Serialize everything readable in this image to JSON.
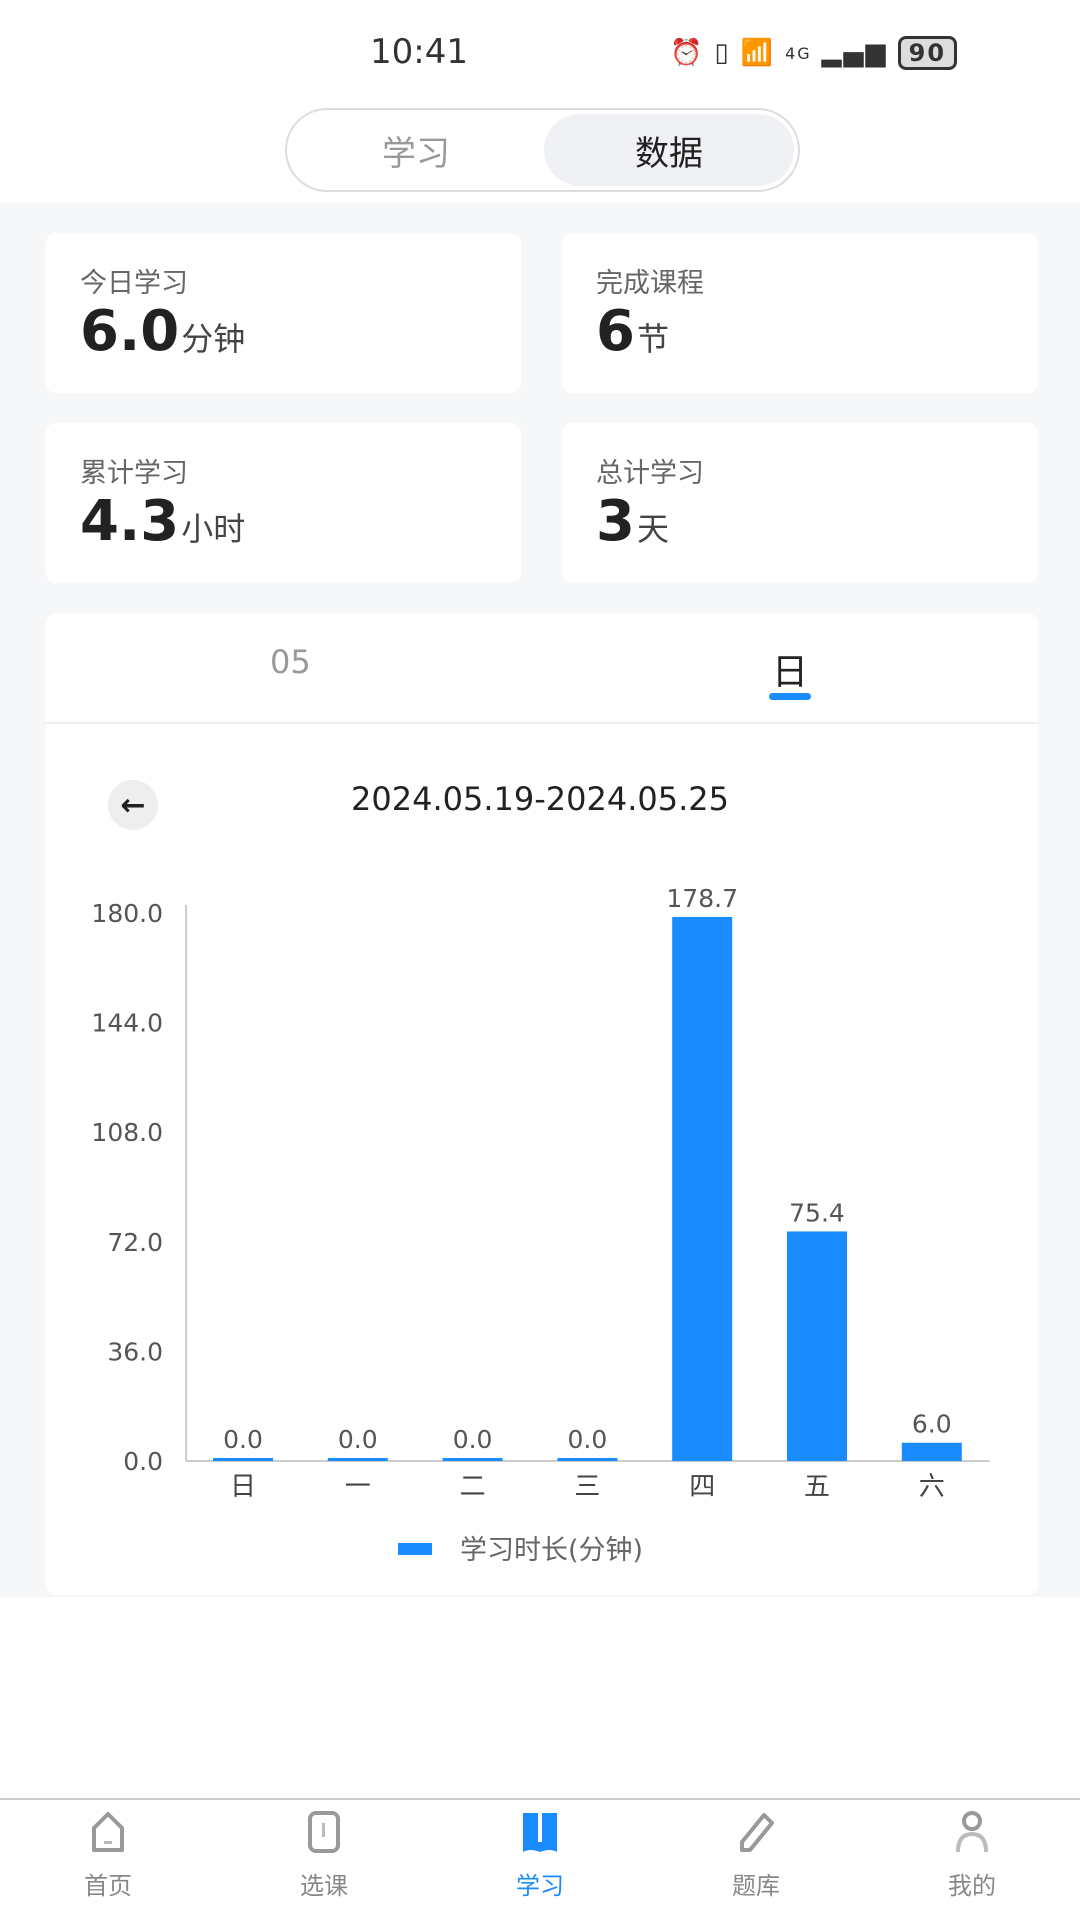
{
  "status": {
    "time": "10:41",
    "battery": "90",
    "network": "4G"
  },
  "segment": {
    "items": [
      "学习",
      "数据"
    ],
    "active": 1
  },
  "stats": [
    {
      "label": "今日学习",
      "value": "6.0",
      "unit": "分钟"
    },
    {
      "label": "完成课程",
      "value": "6",
      "unit": "节"
    },
    {
      "label": "累计学习",
      "value": "4.3",
      "unit": "小时"
    },
    {
      "label": "总计学习",
      "value": "3",
      "unit": "天"
    }
  ],
  "chart_tabs": {
    "items": [
      "05",
      "日"
    ],
    "active": 1
  },
  "date_range": "2024.05.19-2024.05.25",
  "accent": "#1a8cff",
  "chart_data": {
    "type": "bar",
    "categories": [
      "日",
      "一",
      "二",
      "三",
      "四",
      "五",
      "六"
    ],
    "values": [
      0.0,
      0.0,
      0.0,
      0.0,
      178.7,
      75.4,
      6.0
    ],
    "value_labels": [
      "0.0",
      "0.0",
      "0.0",
      "0.0",
      "178.7",
      "75.4",
      "6.0"
    ],
    "yticks": [
      "0.0",
      "36.0",
      "72.0",
      "108.0",
      "144.0",
      "180.0"
    ],
    "ylim": [
      0,
      180
    ],
    "series_name": "学习时长(分钟)",
    "legend": "bottom",
    "grid": false
  },
  "nav": {
    "items": [
      {
        "label": "首页",
        "icon": "home-icon"
      },
      {
        "label": "选课",
        "icon": "course-icon"
      },
      {
        "label": "学习",
        "icon": "book-icon"
      },
      {
        "label": "题库",
        "icon": "pencil-icon"
      },
      {
        "label": "我的",
        "icon": "user-icon"
      }
    ],
    "active": 2
  }
}
